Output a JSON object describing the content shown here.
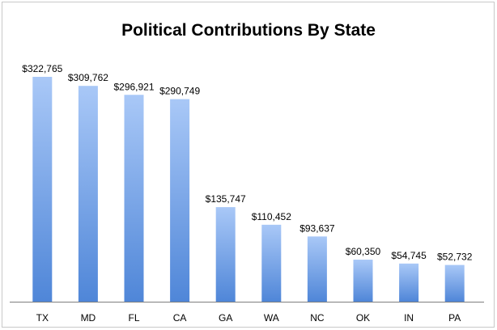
{
  "chart_data": {
    "type": "bar",
    "title": "Political Contributions By State",
    "xlabel": "",
    "ylabel": "",
    "categories": [
      "TX",
      "MD",
      "FL",
      "CA",
      "GA",
      "WA",
      "NC",
      "OK",
      "IN",
      "PA"
    ],
    "values": [
      322765,
      309762,
      296921,
      290749,
      135747,
      110452,
      93637,
      60350,
      54745,
      52732
    ],
    "value_labels": [
      "$322,765",
      "$309,762",
      "$296,921",
      "$290,749",
      "$135,747",
      "$110,452",
      "$93,637",
      "$60,350",
      "$54,745",
      "$52,732"
    ],
    "ylim": [
      0,
      340000
    ],
    "grid": false,
    "legend": "none",
    "bar_color_top": "#a9c8f7",
    "bar_color_bottom": "#4f86d8",
    "axis_color": "#7f7f7f"
  }
}
